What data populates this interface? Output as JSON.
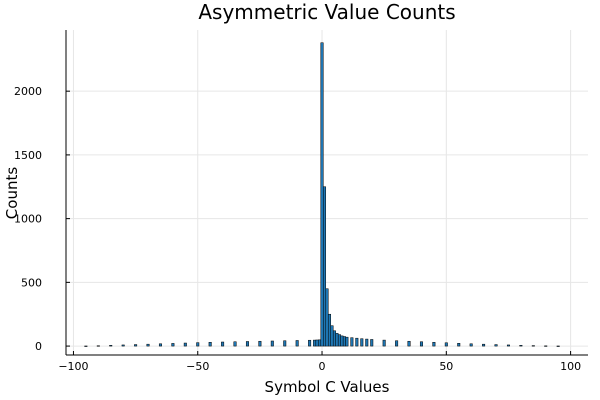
{
  "chart_data": {
    "type": "bar",
    "title": "Asymmetric Value Counts",
    "xlabel": "Symbol C Values",
    "ylabel": "Counts",
    "xlim": [
      -103,
      107
    ],
    "ylim": [
      -70,
      2480
    ],
    "xticks": [
      -100,
      -50,
      0,
      50,
      100
    ],
    "xtick_labels": [
      "−100",
      "−50",
      "0",
      "50",
      "100"
    ],
    "yticks": [
      0,
      500,
      1000,
      1500,
      2000
    ],
    "ytick_labels": [
      "0",
      "500",
      "1000",
      "1500",
      "2000"
    ],
    "grid": true,
    "bar_color": "#1f77b4",
    "bin_width": 1,
    "x": [
      -95,
      -90,
      -85,
      -80,
      -75,
      -70,
      -65,
      -60,
      -55,
      -50,
      -45,
      -40,
      -35,
      -30,
      -25,
      -20,
      -15,
      -10,
      -5,
      -3,
      -2,
      -1,
      0,
      1,
      2,
      3,
      4,
      5,
      6,
      7,
      8,
      9,
      10,
      12,
      14,
      16,
      18,
      20,
      25,
      30,
      35,
      40,
      45,
      50,
      55,
      60,
      65,
      70,
      75,
      80,
      85,
      90,
      95
    ],
    "values": [
      1,
      3,
      6,
      9,
      12,
      15,
      18,
      21,
      24,
      27,
      30,
      32,
      34,
      36,
      38,
      40,
      42,
      44,
      46,
      47,
      48,
      49,
      2380,
      1250,
      450,
      250,
      160,
      120,
      100,
      90,
      80,
      75,
      70,
      66,
      62,
      58,
      55,
      52,
      47,
      42,
      38,
      34,
      30,
      26,
      22,
      18,
      15,
      12,
      9,
      6,
      4,
      2,
      1
    ]
  }
}
